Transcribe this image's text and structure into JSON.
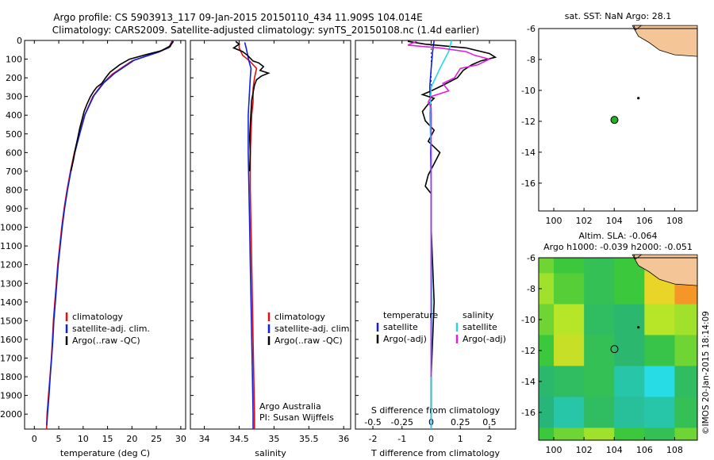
{
  "header": {
    "title_line1": "Argo profile: CS 5903913_117 09-Jan-2015 20150110_434 11.909S 104.014E",
    "title_line2": "Climatology: CARS2009. Satellite-adjusted climatology: synTS_20150108.nc (1.4d earlier)"
  },
  "watermark": "©IMOS 20-Jan-2015 18:14:09",
  "colors": {
    "climatology": "#e01010",
    "satellite": "#1020e0",
    "argo": "#000000",
    "sal_satellite": "#20d8e8",
    "sal_argo": "#e020e0",
    "land": "#f4c596",
    "argo_marker": "#22b022"
  },
  "chart_data": [
    {
      "id": "temperature",
      "type": "line",
      "xlabel": "temperature (deg C)",
      "ylabel": "",
      "xlim": [
        -2,
        31
      ],
      "ylim": [
        2080,
        0
      ],
      "xticks": [
        0,
        5,
        10,
        15,
        20,
        25,
        30
      ],
      "yticks": [
        0,
        100,
        200,
        300,
        400,
        500,
        600,
        700,
        800,
        900,
        1000,
        1100,
        1200,
        1300,
        1400,
        1500,
        1600,
        1700,
        1800,
        1900,
        2000
      ],
      "legend": [
        "climatology",
        "satellite-adj. clim.",
        "Argo(..raw -QC)"
      ],
      "series": [
        {
          "name": "climatology",
          "color": "#e01010",
          "points": [
            [
              28.3,
              0
            ],
            [
              27.5,
              40
            ],
            [
              25,
              65
            ],
            [
              20,
              110
            ],
            [
              16,
              180
            ],
            [
              14,
              230
            ],
            [
              12,
              300
            ],
            [
              10.3,
              400
            ],
            [
              9.2,
              500
            ],
            [
              8.2,
              600
            ],
            [
              7.4,
              700
            ],
            [
              6.7,
              800
            ],
            [
              6.1,
              900
            ],
            [
              5.6,
              1000
            ],
            [
              5.2,
              1100
            ],
            [
              4.8,
              1200
            ],
            [
              4.5,
              1300
            ],
            [
              4.2,
              1400
            ],
            [
              3.9,
              1500
            ],
            [
              3.7,
              1600
            ],
            [
              3.5,
              1700
            ],
            [
              3.2,
              1800
            ],
            [
              2.9,
              1900
            ],
            [
              2.6,
              2000
            ],
            [
              2.5,
              2080
            ]
          ]
        },
        {
          "name": "satellite-adj. clim.",
          "color": "#1020e0",
          "points": [
            [
              28.4,
              0
            ],
            [
              27.8,
              35
            ],
            [
              25.5,
              62
            ],
            [
              20.5,
              105
            ],
            [
              16.5,
              175
            ],
            [
              14.3,
              225
            ],
            [
              12.2,
              295
            ],
            [
              10.4,
              395
            ],
            [
              9.3,
              500
            ],
            [
              8.3,
              600
            ],
            [
              7.5,
              700
            ],
            [
              6.8,
              800
            ],
            [
              6.2,
              900
            ],
            [
              5.7,
              1000
            ],
            [
              5.3,
              1100
            ],
            [
              4.9,
              1200
            ],
            [
              4.6,
              1300
            ],
            [
              4.3,
              1400
            ],
            [
              4,
              1500
            ],
            [
              3.8,
              1600
            ],
            [
              3.55,
              1700
            ],
            [
              3.25,
              1800
            ],
            [
              3,
              1900
            ],
            [
              2.7,
              2000
            ],
            [
              2.55,
              2060
            ]
          ]
        },
        {
          "name": "Argo(..raw -QC)",
          "color": "#000000",
          "points": [
            [
              28.5,
              5
            ],
            [
              27.8,
              30
            ],
            [
              26,
              55
            ],
            [
              23,
              75
            ],
            [
              19.5,
              100
            ],
            [
              17.5,
              130
            ],
            [
              15.5,
              170
            ],
            [
              14.6,
              200
            ],
            [
              13.8,
              230
            ],
            [
              12.8,
              250
            ],
            [
              12.2,
              270
            ],
            [
              11.5,
              300
            ],
            [
              10.8,
              340
            ],
            [
              10.2,
              380
            ],
            [
              9.8,
              420
            ],
            [
              9.3,
              470
            ],
            [
              8.9,
              520
            ],
            [
              8.4,
              580
            ],
            [
              8,
              640
            ],
            [
              7.5,
              700
            ]
          ]
        }
      ]
    },
    {
      "id": "salinity",
      "type": "line",
      "xlabel": "salinity",
      "ylabel": "",
      "xlim": [
        33.8,
        36.1
      ],
      "ylim": [
        2080,
        0
      ],
      "xticks": [
        34,
        34.5,
        35,
        35.5,
        36
      ],
      "legend": [
        "climatology",
        "satellite-adj. clim.",
        "Argo(..raw -QC)"
      ],
      "annotation": [
        "Argo Australia",
        "PI: Susan Wijffels"
      ],
      "series": [
        {
          "name": "climatology",
          "color": "#e01010",
          "points": [
            [
              34.5,
              10
            ],
            [
              34.5,
              40
            ],
            [
              34.55,
              80
            ],
            [
              34.65,
              110
            ],
            [
              34.75,
              150
            ],
            [
              34.72,
              200
            ],
            [
              34.7,
              260
            ],
            [
              34.7,
              330
            ],
            [
              34.68,
              400
            ],
            [
              34.67,
              500
            ],
            [
              34.66,
              600
            ],
            [
              34.66,
              800
            ],
            [
              34.67,
              1000
            ],
            [
              34.68,
              1200
            ],
            [
              34.69,
              1400
            ],
            [
              34.7,
              1600
            ],
            [
              34.71,
              1800
            ],
            [
              34.72,
              2000
            ],
            [
              34.72,
              2080
            ]
          ]
        },
        {
          "name": "satellite-adj. clim.",
          "color": "#1020e0",
          "points": [
            [
              34.58,
              10
            ],
            [
              34.6,
              40
            ],
            [
              34.62,
              75
            ],
            [
              34.64,
              110
            ],
            [
              34.67,
              150
            ],
            [
              34.66,
              200
            ],
            [
              34.65,
              260
            ],
            [
              34.64,
              330
            ],
            [
              34.63,
              400
            ],
            [
              34.63,
              500
            ],
            [
              34.63,
              600
            ],
            [
              34.64,
              800
            ],
            [
              34.65,
              1000
            ],
            [
              34.66,
              1200
            ],
            [
              34.67,
              1400
            ],
            [
              34.68,
              1600
            ],
            [
              34.69,
              1800
            ],
            [
              34.7,
              2000
            ],
            [
              34.7,
              2080
            ]
          ]
        },
        {
          "name": "Argo(..raw -QC)",
          "color": "#000000",
          "points": [
            [
              34.45,
              5
            ],
            [
              34.5,
              20
            ],
            [
              34.42,
              40
            ],
            [
              34.55,
              60
            ],
            [
              34.62,
              80
            ],
            [
              34.7,
              110
            ],
            [
              34.78,
              120
            ],
            [
              34.85,
              140
            ],
            [
              34.8,
              160
            ],
            [
              34.92,
              175
            ],
            [
              34.82,
              190
            ],
            [
              34.75,
              210
            ],
            [
              34.72,
              240
            ],
            [
              34.7,
              280
            ],
            [
              34.68,
              320
            ],
            [
              34.67,
              380
            ],
            [
              34.66,
              450
            ],
            [
              34.65,
              520
            ],
            [
              34.66,
              600
            ],
            [
              34.65,
              700
            ]
          ]
        }
      ]
    },
    {
      "id": "difference",
      "type": "line",
      "xlabel": "T difference from climatology",
      "top_label": "S difference from climatology",
      "xlim": [
        -2.6,
        2.9
      ],
      "ylim": [
        2080,
        0
      ],
      "xticks": [
        -2,
        -1,
        0,
        1,
        2
      ],
      "xticklabels": [
        "-2",
        "-1",
        "0",
        "1",
        "2"
      ],
      "s_ticks": [
        -0.5,
        -0.25,
        0,
        0.25,
        0.5
      ],
      "s_ticklabels": [
        "-0.5",
        "-0.25",
        "0",
        "0.25",
        "0.5"
      ],
      "legend_temperature": [
        "temperature",
        "satellite",
        "Argo(-adj)"
      ],
      "legend_salinity": [
        "salinity",
        "satellite",
        "Argo(-adj)"
      ],
      "series": [
        {
          "name": "temperature satellite",
          "color": "#1020e0",
          "points": [
            [
              0.1,
              0
            ],
            [
              0.05,
              60
            ],
            [
              0.0,
              150
            ],
            [
              -0.05,
              250
            ],
            [
              0.0,
              400
            ],
            [
              -0.02,
              600
            ],
            [
              0.0,
              800
            ],
            [
              0.0,
              1000
            ],
            [
              0.0,
              1400
            ],
            [
              0.0,
              1800
            ],
            [
              0.0,
              2080
            ]
          ]
        },
        {
          "name": "temperature Argo(-adj)",
          "color": "#000000",
          "points": [
            [
              -0.8,
              5
            ],
            [
              -0.2,
              20
            ],
            [
              1.2,
              40
            ],
            [
              2.0,
              70
            ],
            [
              2.2,
              90
            ],
            [
              1.7,
              110
            ],
            [
              1.4,
              130
            ],
            [
              1.1,
              160
            ],
            [
              0.9,
              200
            ],
            [
              0.4,
              240
            ],
            [
              0.0,
              270
            ],
            [
              -0.3,
              290
            ],
            [
              0.1,
              310
            ],
            [
              -0.1,
              340
            ],
            [
              -0.3,
              380
            ],
            [
              -0.2,
              430
            ],
            [
              0.1,
              480
            ],
            [
              -0.1,
              540
            ],
            [
              0.3,
              600
            ],
            [
              0.1,
              660
            ],
            [
              -0.1,
              720
            ],
            [
              -0.2,
              780
            ],
            [
              0.0,
              820
            ],
            [
              0.0,
              1000
            ],
            [
              0.1,
              1400
            ],
            [
              0.0,
              1800
            ],
            [
              0.0,
              2000
            ]
          ]
        },
        {
          "name": "salinity satellite",
          "color": "#20d8e8",
          "points": [
            [
              0.7,
              0
            ],
            [
              0.6,
              60
            ],
            [
              0.3,
              150
            ],
            [
              0.0,
              250
            ],
            [
              -0.05,
              400
            ],
            [
              0.0,
              600
            ],
            [
              0.0,
              800
            ],
            [
              0.0,
              1000
            ],
            [
              0.02,
              1400
            ],
            [
              0.0,
              1800
            ],
            [
              0.0,
              2080
            ]
          ]
        },
        {
          "name": "salinity Argo(-adj)",
          "color": "#e020e0",
          "points": [
            [
              -0.5,
              5
            ],
            [
              -0.8,
              25
            ],
            [
              0.3,
              40
            ],
            [
              1.2,
              60
            ],
            [
              1.5,
              80
            ],
            [
              2.0,
              100
            ],
            [
              1.6,
              130
            ],
            [
              1.0,
              150
            ],
            [
              0.8,
              200
            ],
            [
              0.4,
              230
            ],
            [
              0.6,
              270
            ],
            [
              0.0,
              300
            ],
            [
              -0.1,
              330
            ],
            [
              0.0,
              360
            ],
            [
              0.0,
              800
            ],
            [
              0.0,
              1400
            ],
            [
              0.0,
              1800
            ]
          ]
        }
      ]
    },
    {
      "id": "sst_map",
      "type": "scatter",
      "title": "sat. SST: NaN Argo: 28.1",
      "xlim": [
        99,
        109.5
      ],
      "ylim": [
        -17.8,
        -6
      ],
      "xticks": [
        100,
        102,
        104,
        106,
        108
      ],
      "yticks": [
        -6,
        -8,
        -10,
        -12,
        -14,
        -16
      ],
      "argo_position": [
        104.014,
        -11.909
      ]
    },
    {
      "id": "sla_map",
      "type": "heatmap",
      "title_line1": "Altim. SLA: -0.064",
      "title_line2": "Argo h1000: -0.039 h2000: -0.051",
      "xlim": [
        99,
        109.5
      ],
      "ylim": [
        -17.8,
        -6
      ],
      "xticks": [
        100,
        102,
        104,
        106,
        108
      ],
      "yticks": [
        -6,
        -8,
        -10,
        -12,
        -14,
        -16
      ],
      "argo_position": [
        104.014,
        -11.909
      ],
      "values_grid_lon": [
        99,
        101,
        103,
        105,
        107,
        109
      ],
      "values_grid_lat": [
        -6,
        -8,
        -10,
        -12,
        -14,
        -16,
        -18
      ],
      "values": [
        [
          0.0,
          -0.02,
          -0.04,
          -0.02,
          0.04,
          0.06
        ],
        [
          0.02,
          -0.01,
          -0.04,
          -0.02,
          0.06,
          0.1
        ],
        [
          0.0,
          0.03,
          -0.05,
          -0.06,
          0.03,
          0.02
        ],
        [
          -0.02,
          0.04,
          -0.04,
          -0.06,
          -0.03,
          0.0
        ],
        [
          -0.06,
          -0.05,
          -0.04,
          -0.1,
          -0.14,
          -0.05
        ],
        [
          -0.07,
          -0.1,
          -0.05,
          -0.09,
          -0.1,
          -0.04
        ],
        [
          -0.02,
          0.0,
          0.02,
          -0.02,
          -0.04,
          0.0
        ]
      ]
    }
  ]
}
